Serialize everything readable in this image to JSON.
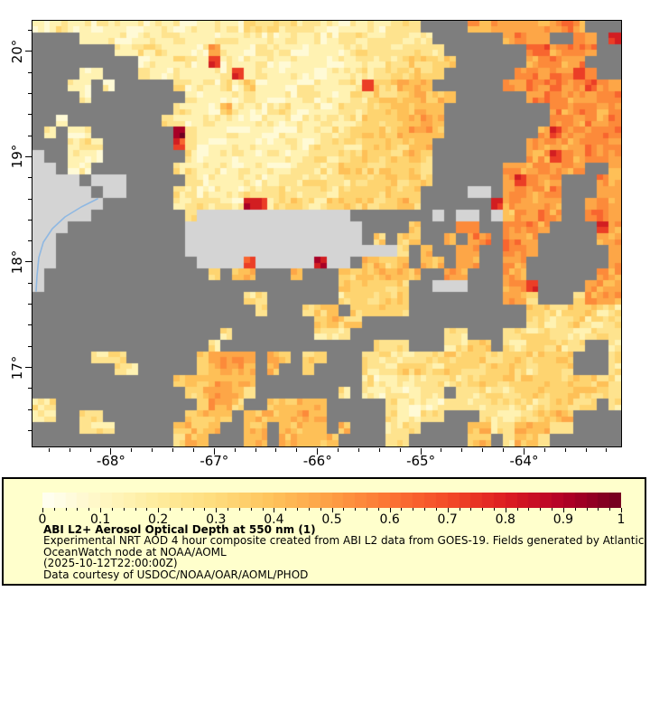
{
  "page": {
    "background": "#FFFFFF"
  },
  "legend": {
    "background": "#FFFFCC",
    "border_color": "#000000",
    "title": "ABI L2+ Aerosol Optical Depth at 550 nm (1)",
    "lines": [
      "Experimental NRT AOD 4 hour composite created from ABI L2 data from GOES-19. Fields generated by Atlantic",
      "OceanWatch node at NOAA/AOML",
      "(2025-10-12T22:00:00Z)",
      "Data courtesy of USDOC/NOAA/OAR/AOML/PHOD"
    ]
  },
  "chart_data": {
    "type": "heatmap",
    "title": "ABI L2+ Aerosol Optical Depth at 550 nm (1)",
    "x_axis": {
      "min": -68.76,
      "max": -63.06,
      "minor_step": 0.2,
      "majors": [
        {
          "value": -68,
          "label": "-68°"
        },
        {
          "value": -67,
          "label": "-67°"
        },
        {
          "value": -66,
          "label": "-66°"
        },
        {
          "value": -65,
          "label": "-65°"
        },
        {
          "value": -64,
          "label": "-64°"
        }
      ]
    },
    "y_axis": {
      "min": 16.25,
      "max": 20.29,
      "minor_step": 0.2,
      "majors": [
        {
          "value": 20,
          "label": "20°"
        },
        {
          "value": 19,
          "label": "19°"
        },
        {
          "value": 18,
          "label": "18°"
        },
        {
          "value": 17,
          "label": "17°"
        }
      ]
    },
    "colorbar": {
      "min": 0,
      "max": 1,
      "minor_tick_step": 0.02,
      "tick_labels": [
        "0",
        "0.1",
        "0.2",
        "0.3",
        "0.4",
        "0.5",
        "0.6",
        "0.7",
        "0.8",
        "0.9",
        "1"
      ],
      "stops": [
        [
          0.0,
          "#FFFFF4"
        ],
        [
          0.1,
          "#FFF7C4"
        ],
        [
          0.2,
          "#FEEC9C"
        ],
        [
          0.3,
          "#FEDC7C"
        ],
        [
          0.4,
          "#FEC25A"
        ],
        [
          0.5,
          "#FD9E44"
        ],
        [
          0.6,
          "#FC7434"
        ],
        [
          0.7,
          "#F34B27"
        ],
        [
          0.8,
          "#DD1D21"
        ],
        [
          0.9,
          "#B30026"
        ],
        [
          1.0,
          "#70001F"
        ]
      ]
    },
    "coastline": {
      "color": "#8FB8E2",
      "points": [
        [
          72,
          197
        ],
        [
          54,
          206
        ],
        [
          36,
          217
        ],
        [
          22,
          230
        ],
        [
          12,
          245
        ],
        [
          7,
          262
        ],
        [
          5,
          282
        ],
        [
          4,
          299
        ]
      ]
    },
    "raster": {
      "cols": 50,
      "rows": 36,
      "codes": {
        "no_data": ".",
        "land": "L"
      },
      "palette": {
        ".": "#7E7E7E",
        "L": "#D4D4D4",
        "w": "#FFFFF2",
        "a": "#FFFAD6",
        "b": "#FFF2B2",
        "c": "#FEE38E",
        "d": "#FED470",
        "e": "#FEC057",
        "f": "#FDA647",
        "g": "#FC8A3A",
        "h": "#F8652F",
        "i": "#EB3E26",
        "j": "#D21E21",
        "k": "#A80026",
        "m": "#6F0020"
      },
      "ramp": [
        "w",
        "a",
        "b",
        "c",
        "d",
        "e",
        "f",
        "g",
        "h",
        "i",
        "j",
        "k",
        "m"
      ],
      "grid": [
        "bbcbbbbbbbbbbbbbbbccccccbbbbbbccc....fffffgffgf...",
        "....bbbbbbbccbbbbbbbbbbbbbcccccccc......fgff..gf.j",
        ".......bbccbbbbfbbbbbbbbbbbcccccccc.......gifggg..",
        ".........bbbcbbibbbbbbbbbbbbccccdddd......fggfg...",
        "....bb...cbbbbbbbibbbbbbbbbbcccdddd......ggfggig..",
        "...bb.b.....cbbbcbebbbbbbbcciddeee......gfgggfgigf",
        "....b........cbbbbcbbbbcbbbccdddeeee......gggfgfgg",
        "............cbbbebbbbcbbbbccdddeeee.........gfggfg",
        "..b........cbbcbbbbbbbbbbcccddeeefe.........fgfgfg",
        ".b.bb.......mcbbbbbbbbbbbccddddeffe........figfggg",
        "...bcb......icbbbbbbbbbbccccddddee........ffgffggg",
        "L..bbb.......cbbbbbbbbbccccddddded........ffigfggf",
        "LL.bb.......ccbbbbbbbbccccdddddddd......fffgffg..f",
        "LLLL.LLL.....cbbbbbbbccccccddddddd......figfg...gf",
        "LLLLL.LL....ccbbbbccccccccddddddd....LL.fgffg...ff",
        "LLLLLL......cccccbjiccdccdddddded......ifffff..fgf",
        "LLLLL........cLLLLLLLLLLLLL.......L.LL.Leffgf..ggf",
        "LLL..........LLLLLLLLLLLLLLL....d...gg..fggf....if",
        "LL...........LLLLLLLLLLLLLLL.d.dd..e.gg.ggf.....ff",
        "LL...........LLLLLLLLLLLLLLLLLLd.e..ef..gff......f",
        "LL............LLLLiLLLLLjLL.eede.ee.ff..ff.......f",
        "L..............d.ee...e...ddeeeee..ff...ff......ff",
        "L.........................dddddd..LLL...ffi....fff",
        "..................cc......cddddd........ffd...dfff",
        "...................c...cdd.ddddd..........ddcdddcc",
        "........................dedd..............ccccdccc",
        "................c.......ccc........cc...cccdcccccc",
        "...............c.............ccc...ccdd.ccdddcc..c",
        ".....ccc......effff.ed.dd...ccccccdddddddddddd...c",
        ".......cc.....deffe.e..d....cccdddcdddddddcddd...c",
        "............deeffee.........cbbccccccddddddddddddc",
        ".............deffed.......c.bbbbbcc.ccccccddddddcc",
        "cc............dffd..eeeee.....cbbbbcccccccccdddd.c",
        "bb..cc.......deed.eeeeefe.....cbbcc...cccccdee....",
        "....ccc.....deee..ee.eeee.e...ccc....eecceeecc....",
        "............dee...ee.eeeee....cc.....ee.ceec......"
      ]
    }
  }
}
